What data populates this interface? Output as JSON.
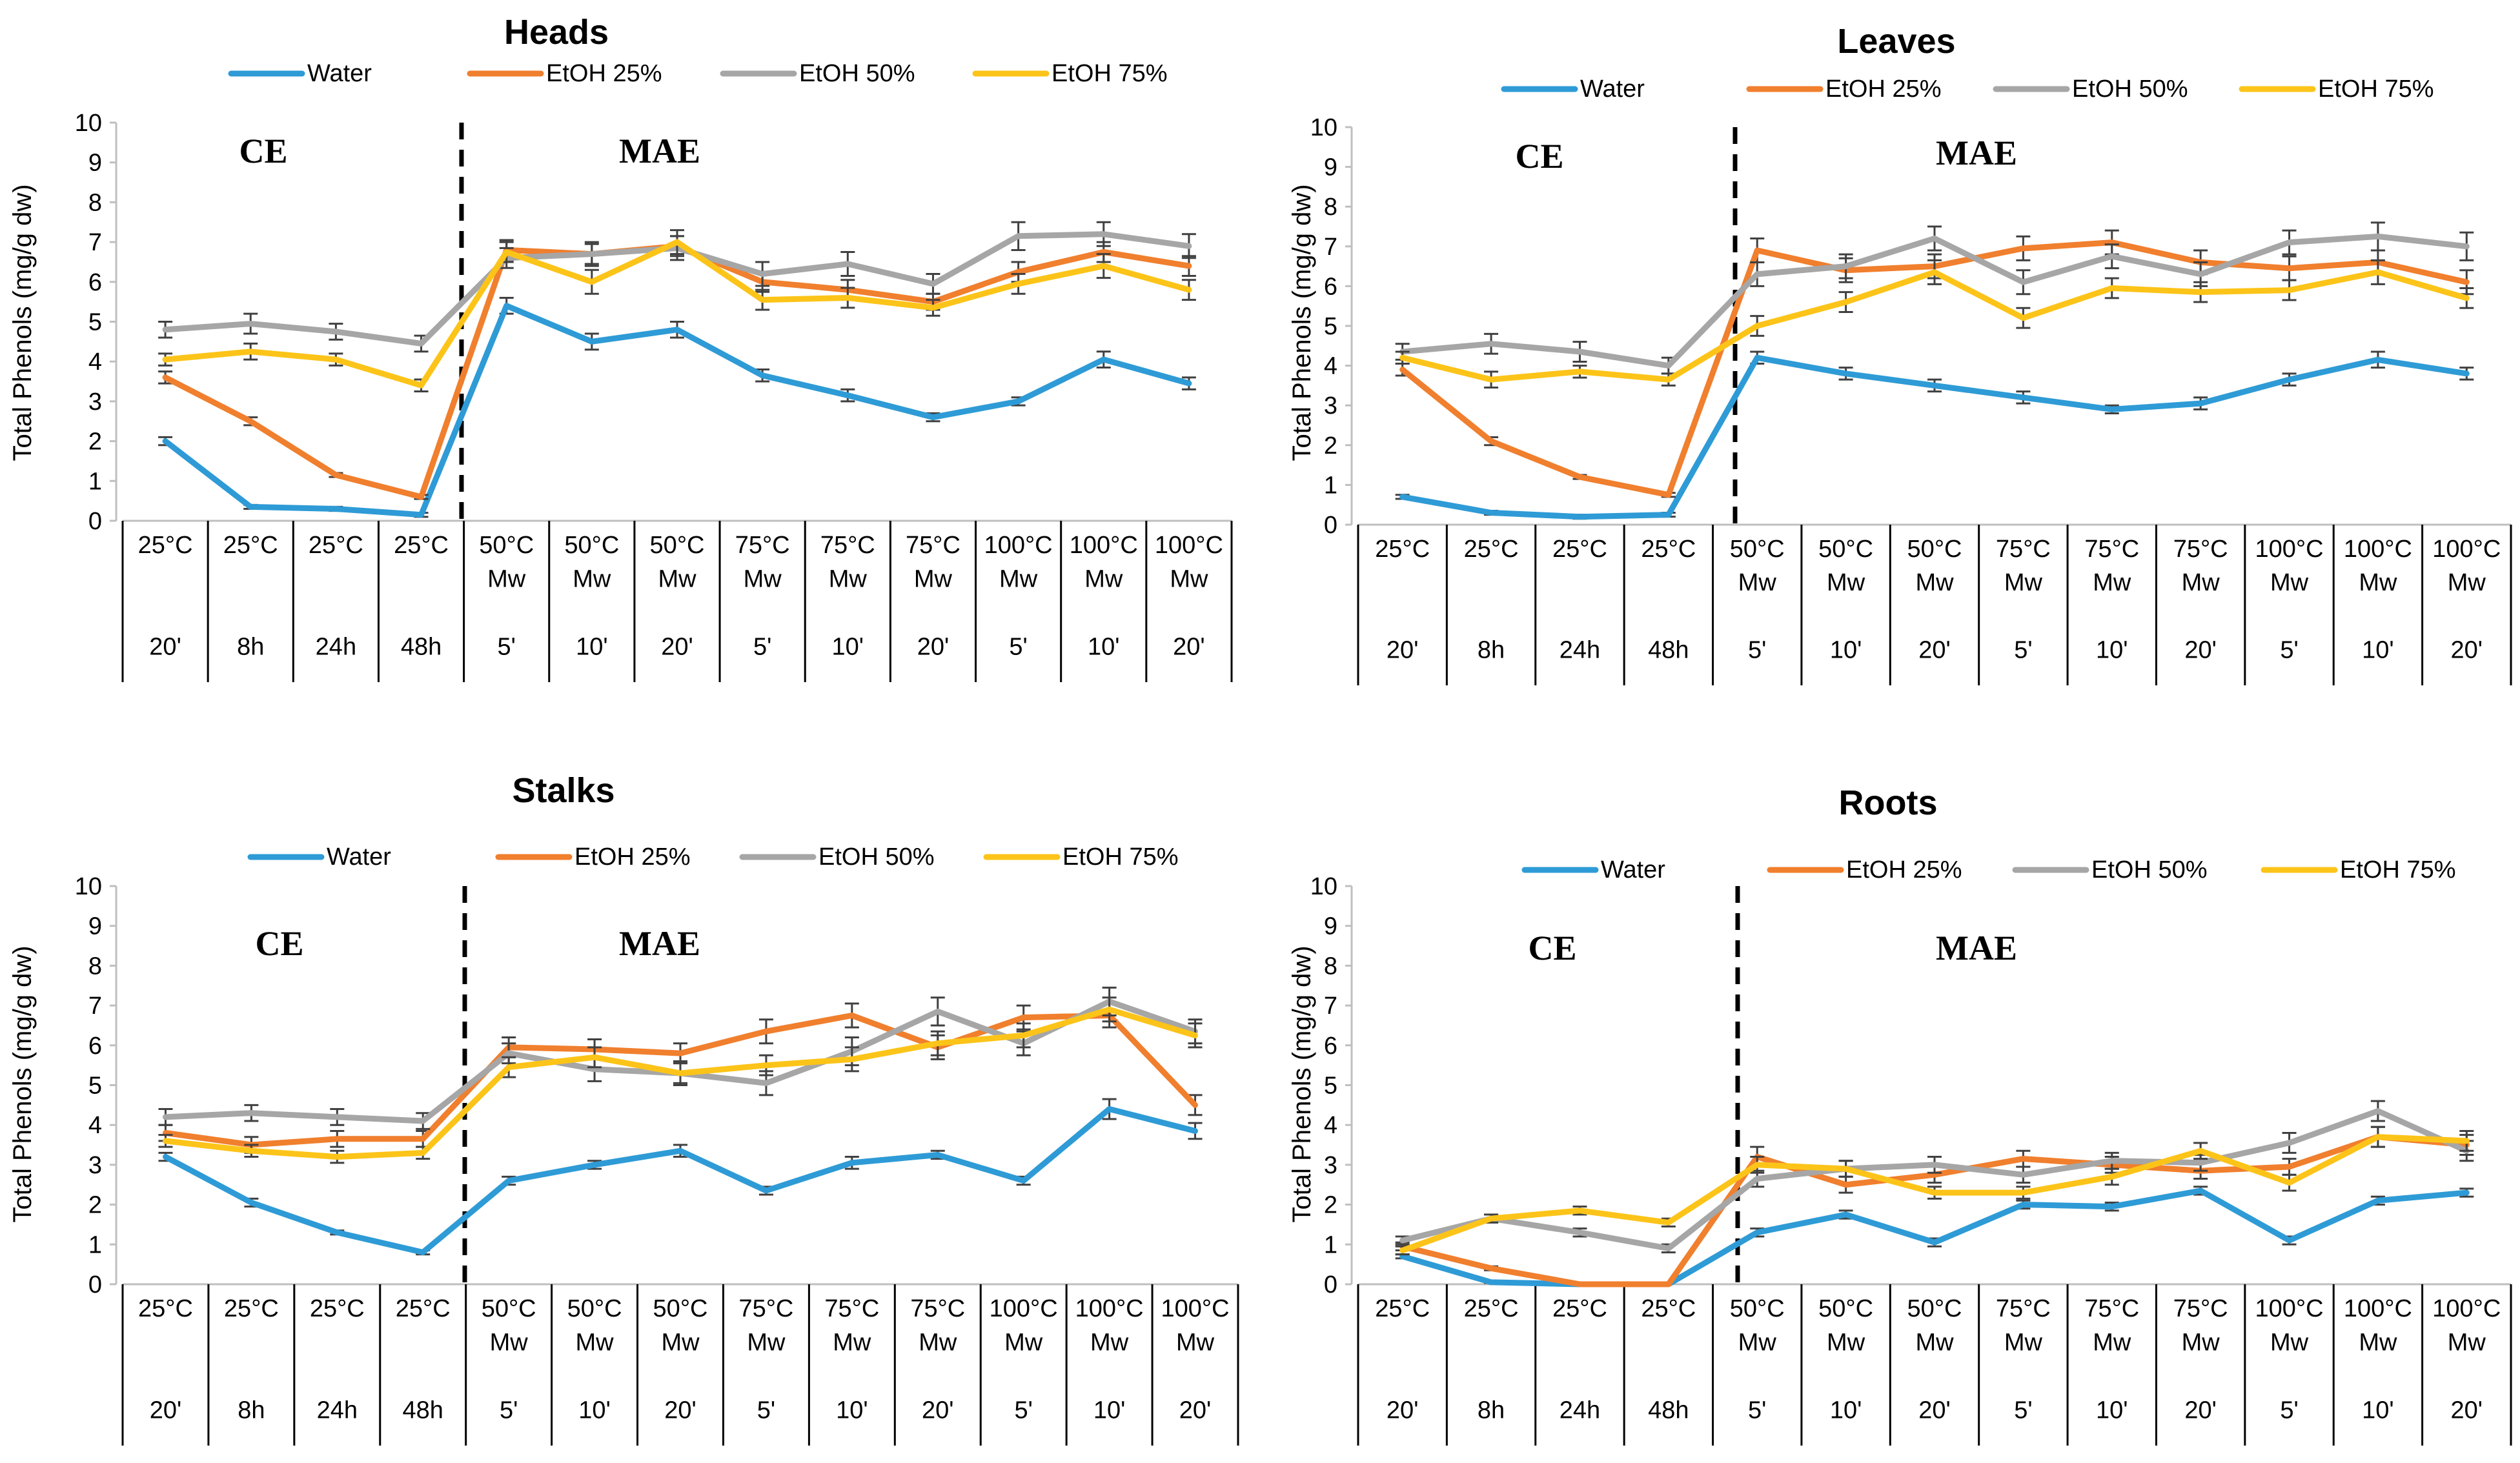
{
  "chart_data": [
    {
      "type": "line",
      "title": "Heads",
      "ylabel": "Total Phenols (mg/g  dw)",
      "ylim": [
        0,
        10
      ],
      "yticks": [
        0,
        1,
        2,
        3,
        4,
        5,
        6,
        7,
        8,
        9,
        10
      ],
      "regions": [
        "CE",
        "MAE"
      ],
      "categories": [
        {
          "temp": "25°C",
          "method": "",
          "time": "20'"
        },
        {
          "temp": "25°C",
          "method": "",
          "time": "8h"
        },
        {
          "temp": "25°C",
          "method": "",
          "time": "24h"
        },
        {
          "temp": "25°C",
          "method": "",
          "time": "48h"
        },
        {
          "temp": "50°C",
          "method": "Mw",
          "time": "5'"
        },
        {
          "temp": "50°C",
          "method": "Mw",
          "time": "10'"
        },
        {
          "temp": "50°C",
          "method": "Mw",
          "time": "20'"
        },
        {
          "temp": "75°C",
          "method": "Mw",
          "time": "5'"
        },
        {
          "temp": "75°C",
          "method": "Mw",
          "time": "10'"
        },
        {
          "temp": "75°C",
          "method": "Mw",
          "time": "20'"
        },
        {
          "temp": "100°C",
          "method": "Mw",
          "time": "5'"
        },
        {
          "temp": "100°C",
          "method": "Mw",
          "time": "10'"
        },
        {
          "temp": "100°C",
          "method": "Mw",
          "time": "20'"
        }
      ],
      "series": [
        {
          "name": "Water",
          "color": "#2e9bd6",
          "values": [
            2.0,
            0.35,
            0.3,
            0.15,
            5.4,
            4.5,
            4.8,
            3.65,
            3.15,
            2.6,
            3.0,
            4.05,
            3.45
          ],
          "errors": [
            0.1,
            0.05,
            0.05,
            0.05,
            0.2,
            0.2,
            0.2,
            0.15,
            0.15,
            0.1,
            0.1,
            0.2,
            0.15
          ]
        },
        {
          "name": "EtOH 25%",
          "color": "#f07f2e",
          "values": [
            3.6,
            2.5,
            1.15,
            0.6,
            6.8,
            6.7,
            6.9,
            6.0,
            5.8,
            5.5,
            6.25,
            6.75,
            6.4
          ],
          "errors": [
            0.15,
            0.1,
            0.05,
            0.05,
            0.25,
            0.25,
            0.25,
            0.25,
            0.25,
            0.2,
            0.25,
            0.25,
            0.25
          ]
        },
        {
          "name": "EtOH 50%",
          "color": "#a6a6a6",
          "values": [
            4.8,
            4.95,
            4.75,
            4.45,
            6.6,
            6.7,
            6.85,
            6.2,
            6.45,
            5.95,
            7.15,
            7.2,
            6.9
          ],
          "errors": [
            0.2,
            0.25,
            0.2,
            0.2,
            0.25,
            0.3,
            0.3,
            0.3,
            0.3,
            0.25,
            0.35,
            0.3,
            0.3
          ]
        },
        {
          "name": "EtOH 75%",
          "color": "#fcc419",
          "values": [
            4.05,
            4.25,
            4.05,
            3.4,
            6.75,
            6.0,
            7.0,
            5.55,
            5.6,
            5.35,
            5.95,
            6.4,
            5.8
          ],
          "errors": [
            0.15,
            0.2,
            0.15,
            0.15,
            0.25,
            0.3,
            0.3,
            0.25,
            0.25,
            0.2,
            0.25,
            0.3,
            0.25
          ]
        }
      ]
    },
    {
      "type": "line",
      "title": "Leaves",
      "ylabel": "Total Phenols (mg/g  dw)",
      "ylim": [
        0,
        10
      ],
      "yticks": [
        0,
        1,
        2,
        3,
        4,
        5,
        6,
        7,
        8,
        9,
        10
      ],
      "regions": [
        "CE",
        "MAE"
      ],
      "categories": [
        {
          "temp": "25°C",
          "method": "",
          "time": "20'"
        },
        {
          "temp": "25°C",
          "method": "",
          "time": "8h"
        },
        {
          "temp": "25°C",
          "method": "",
          "time": "24h"
        },
        {
          "temp": "25°C",
          "method": "",
          "time": "48h"
        },
        {
          "temp": "50°C",
          "method": "Mw",
          "time": "5'"
        },
        {
          "temp": "50°C",
          "method": "Mw",
          "time": "10'"
        },
        {
          "temp": "50°C",
          "method": "Mw",
          "time": "20'"
        },
        {
          "temp": "75°C",
          "method": "Mw",
          "time": "5'"
        },
        {
          "temp": "75°C",
          "method": "Mw",
          "time": "10'"
        },
        {
          "temp": "75°C",
          "method": "Mw",
          "time": "20'"
        },
        {
          "temp": "100°C",
          "method": "Mw",
          "time": "5'"
        },
        {
          "temp": "100°C",
          "method": "Mw",
          "time": "10'"
        },
        {
          "temp": "100°C",
          "method": "Mw",
          "time": "20'"
        }
      ],
      "series": [
        {
          "name": "Water",
          "color": "#2e9bd6",
          "values": [
            0.7,
            0.3,
            0.2,
            0.25,
            4.2,
            3.8,
            3.5,
            3.2,
            2.9,
            3.05,
            3.65,
            4.15,
            3.8
          ],
          "errors": [
            0.05,
            0.05,
            0.05,
            0.05,
            0.15,
            0.15,
            0.15,
            0.15,
            0.1,
            0.15,
            0.15,
            0.2,
            0.15
          ]
        },
        {
          "name": "EtOH 25%",
          "color": "#f07f2e",
          "values": [
            3.9,
            2.1,
            1.2,
            0.75,
            6.9,
            6.4,
            6.5,
            6.95,
            7.1,
            6.6,
            6.45,
            6.6,
            6.1
          ],
          "errors": [
            0.15,
            0.1,
            0.05,
            0.05,
            0.3,
            0.3,
            0.3,
            0.3,
            0.3,
            0.3,
            0.3,
            0.3,
            0.3
          ]
        },
        {
          "name": "EtOH 50%",
          "color": "#a6a6a6",
          "values": [
            4.35,
            4.55,
            4.35,
            4.0,
            6.3,
            6.5,
            7.2,
            6.1,
            6.75,
            6.3,
            7.1,
            7.25,
            7.0
          ],
          "errors": [
            0.2,
            0.25,
            0.25,
            0.2,
            0.3,
            0.3,
            0.3,
            0.3,
            0.3,
            0.3,
            0.3,
            0.35,
            0.35
          ]
        },
        {
          "name": "EtOH 75%",
          "color": "#fcc419",
          "values": [
            4.2,
            3.65,
            3.85,
            3.65,
            5.0,
            5.6,
            6.35,
            5.2,
            5.95,
            5.85,
            5.9,
            6.35,
            5.7
          ],
          "errors": [
            0.15,
            0.2,
            0.15,
            0.15,
            0.25,
            0.25,
            0.3,
            0.25,
            0.25,
            0.25,
            0.25,
            0.3,
            0.25
          ]
        }
      ]
    },
    {
      "type": "line",
      "title": "Stalks",
      "ylabel": "Total Phenols (mg/g  dw)",
      "ylim": [
        0,
        10
      ],
      "yticks": [
        0,
        1,
        2,
        3,
        4,
        5,
        6,
        7,
        8,
        9,
        10
      ],
      "regions": [
        "CE",
        "MAE"
      ],
      "categories": [
        {
          "temp": "25°C",
          "method": "",
          "time": "20'"
        },
        {
          "temp": "25°C",
          "method": "",
          "time": "8h"
        },
        {
          "temp": "25°C",
          "method": "",
          "time": "24h"
        },
        {
          "temp": "25°C",
          "method": "",
          "time": "48h"
        },
        {
          "temp": "50°C",
          "method": "Mw",
          "time": "5'"
        },
        {
          "temp": "50°C",
          "method": "Mw",
          "time": "10'"
        },
        {
          "temp": "50°C",
          "method": "Mw",
          "time": "20'"
        },
        {
          "temp": "75°C",
          "method": "Mw",
          "time": "5'"
        },
        {
          "temp": "75°C",
          "method": "Mw",
          "time": "10'"
        },
        {
          "temp": "75°C",
          "method": "Mw",
          "time": "20'"
        },
        {
          "temp": "100°C",
          "method": "Mw",
          "time": "5'"
        },
        {
          "temp": "100°C",
          "method": "Mw",
          "time": "10'"
        },
        {
          "temp": "100°C",
          "method": "Mw",
          "time": "20'"
        }
      ],
      "series": [
        {
          "name": "Water",
          "color": "#2e9bd6",
          "values": [
            3.2,
            2.05,
            1.3,
            0.8,
            2.6,
            3.0,
            3.35,
            2.35,
            3.05,
            3.25,
            2.6,
            4.4,
            3.85
          ],
          "errors": [
            0.1,
            0.1,
            0.05,
            0.05,
            0.1,
            0.1,
            0.15,
            0.1,
            0.15,
            0.1,
            0.1,
            0.25,
            0.2
          ]
        },
        {
          "name": "EtOH 25%",
          "color": "#f07f2e",
          "values": [
            3.8,
            3.5,
            3.65,
            3.65,
            5.95,
            5.9,
            5.8,
            6.35,
            6.75,
            5.95,
            6.7,
            6.75,
            4.5
          ],
          "errors": [
            0.2,
            0.2,
            0.2,
            0.2,
            0.25,
            0.25,
            0.25,
            0.3,
            0.3,
            0.3,
            0.3,
            0.3,
            0.25
          ]
        },
        {
          "name": "EtOH 50%",
          "color": "#a6a6a6",
          "values": [
            4.2,
            4.3,
            4.2,
            4.1,
            5.8,
            5.4,
            5.3,
            5.05,
            5.85,
            6.85,
            6.05,
            7.1,
            6.35
          ],
          "errors": [
            0.2,
            0.2,
            0.2,
            0.2,
            0.25,
            0.3,
            0.3,
            0.3,
            0.35,
            0.35,
            0.3,
            0.35,
            0.3
          ]
        },
        {
          "name": "EtOH 75%",
          "color": "#fcc419",
          "values": [
            3.6,
            3.35,
            3.2,
            3.3,
            5.45,
            5.7,
            5.3,
            5.5,
            5.65,
            6.05,
            6.25,
            6.9,
            6.25
          ],
          "errors": [
            0.15,
            0.15,
            0.15,
            0.15,
            0.25,
            0.25,
            0.25,
            0.25,
            0.3,
            0.3,
            0.3,
            0.3,
            0.3
          ]
        }
      ]
    },
    {
      "type": "line",
      "title": "Roots",
      "ylabel": "Total Phenols (mg/g  dw)",
      "ylim": [
        0,
        10
      ],
      "yticks": [
        0,
        1,
        2,
        3,
        4,
        5,
        6,
        7,
        8,
        9,
        10
      ],
      "regions": [
        "CE",
        "MAE"
      ],
      "categories": [
        {
          "temp": "25°C",
          "method": "",
          "time": "20'"
        },
        {
          "temp": "25°C",
          "method": "",
          "time": "8h"
        },
        {
          "temp": "25°C",
          "method": "",
          "time": "24h"
        },
        {
          "temp": "25°C",
          "method": "",
          "time": "48h"
        },
        {
          "temp": "50°C",
          "method": "Mw",
          "time": "5'"
        },
        {
          "temp": "50°C",
          "method": "Mw",
          "time": "10'"
        },
        {
          "temp": "50°C",
          "method": "Mw",
          "time": "20'"
        },
        {
          "temp": "75°C",
          "method": "Mw",
          "time": "5'"
        },
        {
          "temp": "75°C",
          "method": "Mw",
          "time": "10'"
        },
        {
          "temp": "75°C",
          "method": "Mw",
          "time": "20'"
        },
        {
          "temp": "100°C",
          "method": "Mw",
          "time": "5'"
        },
        {
          "temp": "100°C",
          "method": "Mw",
          "time": "10'"
        },
        {
          "temp": "100°C",
          "method": "Mw",
          "time": "20'"
        }
      ],
      "series": [
        {
          "name": "Water",
          "color": "#2e9bd6",
          "values": [
            0.7,
            0.05,
            0.0,
            0.0,
            1.3,
            1.75,
            1.05,
            2.0,
            1.95,
            2.35,
            1.1,
            2.1,
            2.3
          ],
          "errors": [
            0.05,
            0.02,
            0.0,
            0.0,
            0.1,
            0.1,
            0.1,
            0.1,
            0.1,
            0.1,
            0.1,
            0.1,
            0.1
          ]
        },
        {
          "name": "EtOH 25%",
          "color": "#f07f2e",
          "values": [
            0.95,
            0.4,
            0.0,
            0.0,
            3.2,
            2.5,
            2.75,
            3.15,
            3.0,
            2.85,
            2.95,
            3.7,
            3.5
          ],
          "errors": [
            0.1,
            0.05,
            0.0,
            0.0,
            0.25,
            0.2,
            0.2,
            0.2,
            0.2,
            0.2,
            0.2,
            0.25,
            0.25
          ]
        },
        {
          "name": "EtOH 50%",
          "color": "#a6a6a6",
          "values": [
            1.1,
            1.65,
            1.3,
            0.9,
            2.65,
            2.9,
            3.0,
            2.75,
            3.1,
            3.05,
            3.55,
            4.35,
            3.35
          ],
          "errors": [
            0.1,
            0.1,
            0.1,
            0.1,
            0.2,
            0.2,
            0.2,
            0.2,
            0.2,
            0.2,
            0.25,
            0.25,
            0.25
          ]
        },
        {
          "name": "EtOH 75%",
          "color": "#fcc419",
          "values": [
            0.85,
            1.65,
            1.85,
            1.55,
            3.0,
            2.9,
            2.3,
            2.3,
            2.7,
            3.35,
            2.55,
            3.7,
            3.6
          ],
          "errors": [
            0.1,
            0.1,
            0.1,
            0.1,
            0.2,
            0.2,
            0.15,
            0.15,
            0.2,
            0.2,
            0.2,
            0.25,
            0.25
          ]
        }
      ]
    }
  ]
}
